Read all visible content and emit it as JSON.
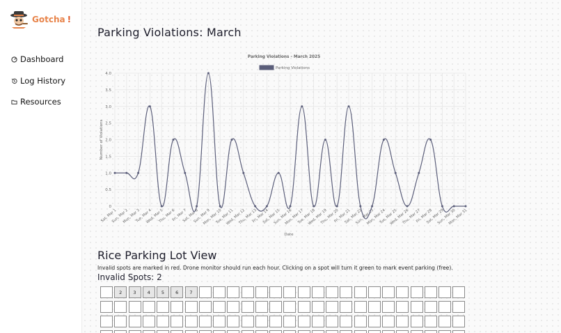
{
  "brand": {
    "name": "Gotcha",
    "exclaim": "!"
  },
  "nav": [
    {
      "label": "Dashboard",
      "icon": "dashboard-icon"
    },
    {
      "label": "Log History",
      "icon": "history-icon"
    },
    {
      "label": "Resources",
      "icon": "folder-icon"
    }
  ],
  "page": {
    "title": "Parking Violations: March"
  },
  "chart_data": {
    "type": "line",
    "title": "Parking Violations - March 2025",
    "xlabel": "Date",
    "ylabel": "Number of Violations",
    "ylim": [
      0,
      4
    ],
    "yticks": [
      "0",
      "0.5",
      "1.0",
      "1.5",
      "2.0",
      "2.5",
      "3.0",
      "3.5",
      "4.0"
    ],
    "grid": true,
    "legend": "top-center",
    "color": "#5b5e7a",
    "categories": [
      "Sat, Mar 1",
      "Sun, Mar 2",
      "Mon, Mar 3",
      "Tue, Mar 4",
      "Wed, Mar 5",
      "Thu, Mar 6",
      "Fri, Mar 7",
      "Sat, Mar 8",
      "Sun, Mar 9",
      "Mon, Mar 10",
      "Tue, Mar 11",
      "Wed, Mar 12",
      "Thu, Mar 13",
      "Fri, Mar 14",
      "Sat, Mar 15",
      "Sun, Mar 16",
      "Mon, Mar 17",
      "Tue, Mar 18",
      "Wed, Mar 19",
      "Thu, Mar 20",
      "Fri, Mar 21",
      "Sat, Mar 22",
      "Sun, Mar 23",
      "Mon, Mar 24",
      "Tue, Mar 25",
      "Wed, Mar 26",
      "Thu, Mar 27",
      "Fri, Mar 28",
      "Sat, Mar 29",
      "Sun, Mar 30",
      "Mon, Mar 31"
    ],
    "series": [
      {
        "name": "Parking Violations",
        "values": [
          1,
          1,
          1,
          3,
          0,
          2,
          1,
          0,
          4,
          0,
          2,
          1,
          0,
          0,
          1,
          0,
          3,
          0,
          2,
          0,
          3,
          0,
          0,
          2,
          1,
          0,
          1,
          2,
          0,
          0,
          0
        ]
      }
    ]
  },
  "lot": {
    "title": "Rice Parking Lot View",
    "description": "Invalid spots are marked in red. Drone monitor should run each hour. Clicking on a spot will turn it green to mark event parking (free).",
    "invalid_label": "Invalid Spots: 2",
    "first_row_labels": [
      "",
      "2",
      "3",
      "4",
      "5",
      "6",
      "7"
    ]
  }
}
